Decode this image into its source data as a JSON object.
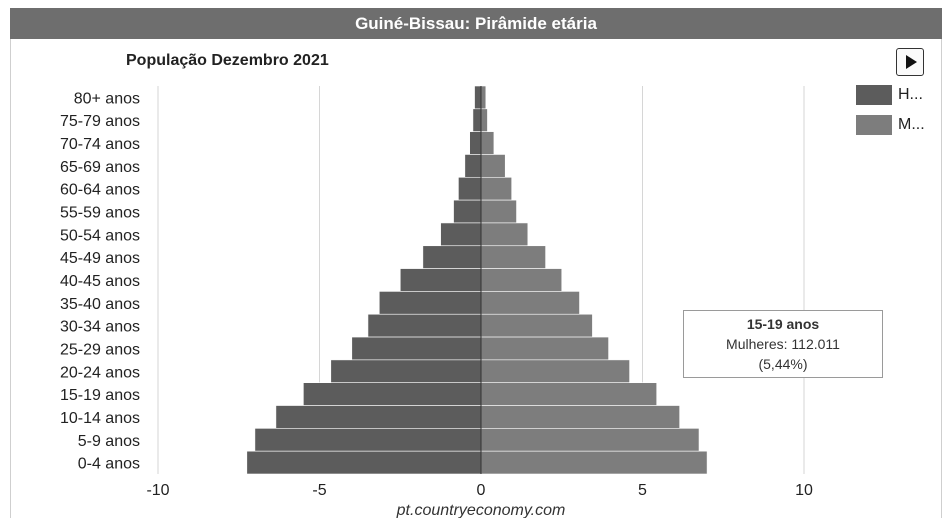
{
  "header": {
    "title": "Guiné-Bissau: Pirâmide etária"
  },
  "subtitle": "População Dezembro 2021",
  "legend": [
    {
      "label": "H...",
      "color": "#5c5c5c"
    },
    {
      "label": "M...",
      "color": "#7d7d7d"
    }
  ],
  "tooltip": {
    "title": "15-19 anos",
    "line1": "Mulheres: 112.011",
    "line2": "(5,44%)"
  },
  "credit": "pt.countryeconomy.com",
  "chart_data": {
    "type": "bar",
    "orientation": "horizontal",
    "categories": [
      "80+ anos",
      "75-79 anos",
      "70-74 anos",
      "65-69 anos",
      "60-64 anos",
      "55-59 anos",
      "50-54 anos",
      "45-49 anos",
      "40-45 anos",
      "35-40 anos",
      "30-34 anos",
      "25-29 anos",
      "20-24 anos",
      "15-19 anos",
      "10-14 anos",
      "5-9 anos",
      "0-4 anos"
    ],
    "series": [
      {
        "name": "H...",
        "color": "#5c5c5c",
        "values": [
          -0.2,
          -0.25,
          -0.35,
          -0.5,
          -0.7,
          -0.85,
          -1.25,
          -1.8,
          -2.5,
          -3.15,
          -3.5,
          -4.0,
          -4.65,
          -5.5,
          -6.35,
          -7.0,
          -7.25
        ]
      },
      {
        "name": "M...",
        "color": "#7d7d7d",
        "values": [
          0.15,
          0.2,
          0.4,
          0.75,
          0.95,
          1.1,
          1.45,
          2.0,
          2.5,
          3.05,
          3.45,
          3.95,
          4.6,
          5.44,
          6.15,
          6.75,
          7.0
        ]
      }
    ],
    "xlim": [
      -10,
      10
    ],
    "xticks": [
      -10,
      -5,
      0,
      5,
      10
    ],
    "grid": true,
    "legend_position": "top-right"
  }
}
